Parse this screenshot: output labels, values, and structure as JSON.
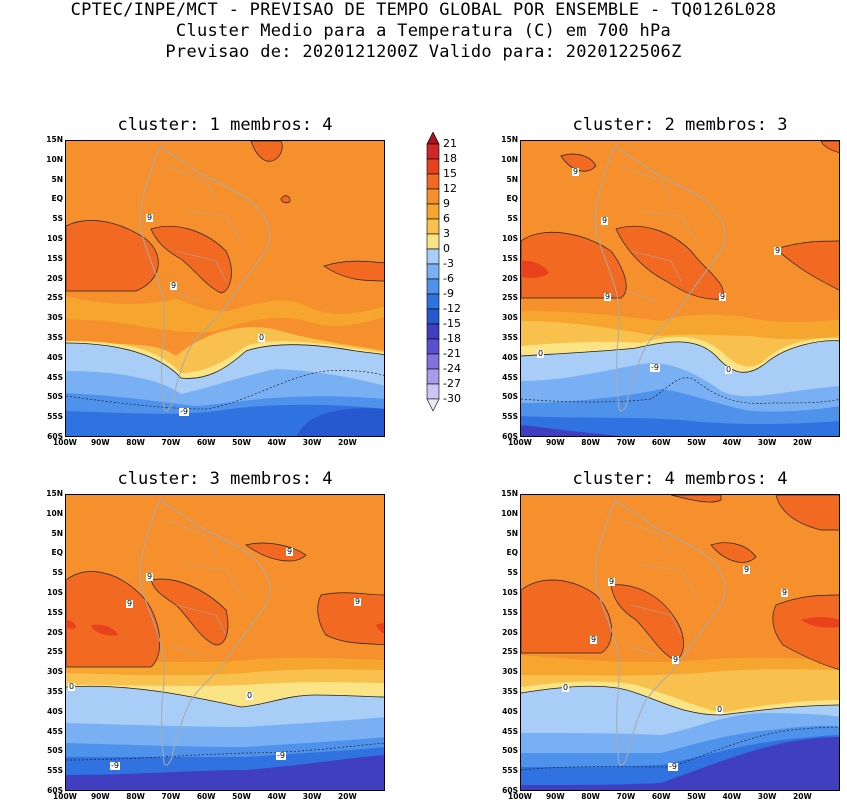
{
  "header": {
    "line1": "CPTEC/INPE/MCT - PREVISAO DE TEMPO GLOBAL POR ENSEMBLE - TQ0126L028",
    "line2": "Cluster Medio para a Temperatura (C) em 700 hPa",
    "line3": "Previsao de: 2020121200Z   Valido para: 2020122506Z"
  },
  "panels": [
    {
      "title": "cluster: 1  membros: 4"
    },
    {
      "title": "cluster: 2  membros: 3"
    },
    {
      "title": "cluster: 3  membros: 4"
    },
    {
      "title": "cluster: 4  membros: 4"
    }
  ],
  "lat_ticks": [
    "15N",
    "10N",
    "5N",
    "EQ",
    "5S",
    "10S",
    "15S",
    "20S",
    "25S",
    "30S",
    "35S",
    "40S",
    "45S",
    "50S",
    "55S",
    "60S"
  ],
  "lon_ticks": [
    "100W",
    "90W",
    "80W",
    "70W",
    "60W",
    "50W",
    "40W",
    "30W",
    "20W"
  ],
  "colorbar": {
    "labels": [
      "21",
      "18",
      "15",
      "12",
      "9",
      "6",
      "3",
      "0",
      "-3",
      "-6",
      "-9",
      "-12",
      "-15",
      "-18",
      "-21",
      "-24",
      "-27",
      "-30"
    ],
    "colors": [
      "#a4161a",
      "#d1262a",
      "#e8411b",
      "#f26922",
      "#f5902d",
      "#f6a62f",
      "#f8c14e",
      "#fae485",
      "#a8cdf6",
      "#79b0f3",
      "#4f92ec",
      "#2f72e0",
      "#2658cf",
      "#3f3fbf",
      "#5a4fcf",
      "#8272de",
      "#a79bea",
      "#cdc5f3",
      "#ece8fa"
    ]
  },
  "contour_labels": {
    "p1": [
      "9",
      "9",
      "0",
      "-9"
    ],
    "p2": [
      "9",
      "9",
      "9",
      "9",
      "9",
      "0",
      "0",
      "-9"
    ],
    "p3": [
      "9",
      "9",
      "9",
      "9",
      "0",
      "0",
      "-9",
      "-9"
    ],
    "p4": [
      "9",
      "9",
      "9",
      "9",
      "9",
      "0",
      "0",
      "-9"
    ]
  }
}
